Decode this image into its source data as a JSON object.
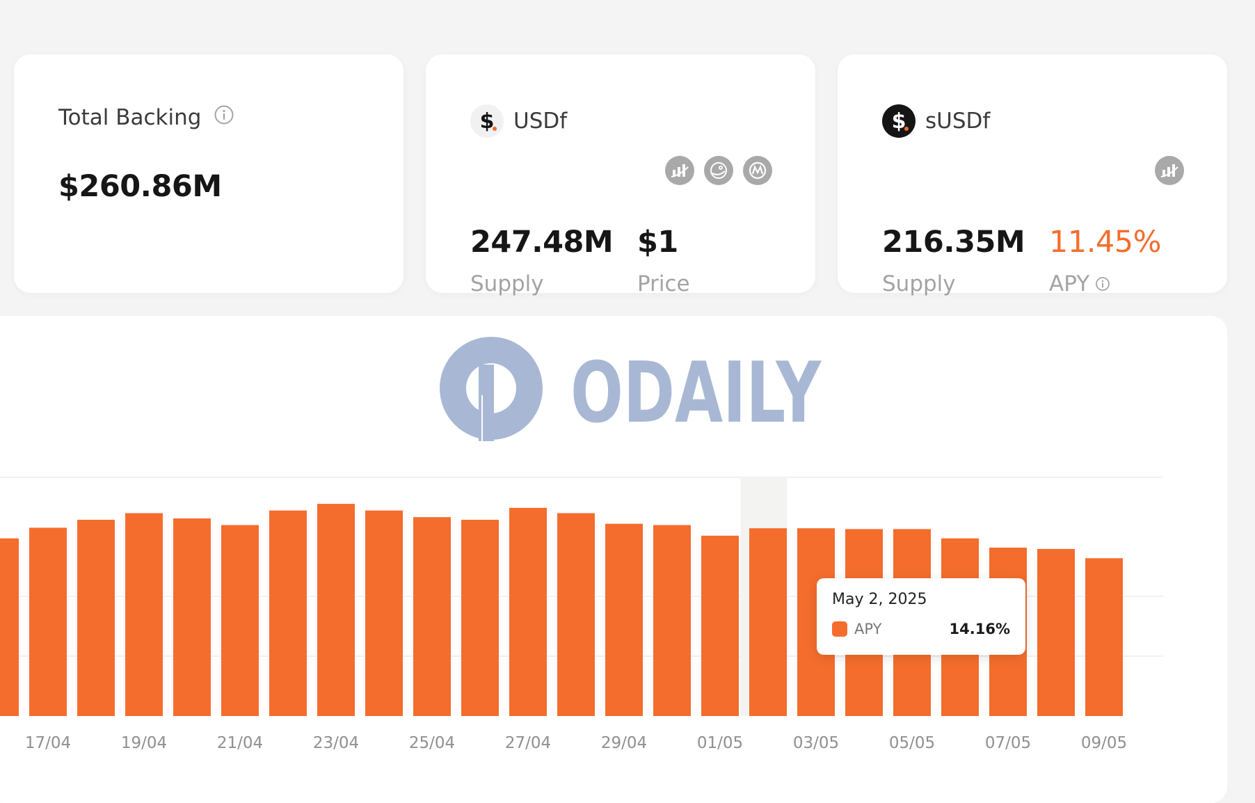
{
  "cards": {
    "backing": {
      "title": "Total Backing",
      "value": "$260.86M"
    },
    "usdf": {
      "name": "USDf",
      "logo_symbol": "$",
      "supply_value": "247.48M",
      "supply_label": "Supply",
      "price_value": "$1",
      "price_label": "Price",
      "link_icons": [
        "defillama-icon",
        "coingecko-icon",
        "coinmarketcap-icon"
      ]
    },
    "susdf": {
      "name": "sUSDf",
      "logo_symbol": "$",
      "supply_value": "216.35M",
      "supply_label": "Supply",
      "apy_value": "11.45%",
      "apy_label": "APY",
      "link_icons": [
        "defillama-icon"
      ]
    }
  },
  "watermark": {
    "text": "ODAILY"
  },
  "tooltip": {
    "date": "May 2, 2025",
    "label": "APY",
    "value": "14.16%"
  },
  "colors": {
    "accent": "#f46d2d",
    "hover_band": "#f3f3f1"
  },
  "chart_data": {
    "type": "bar",
    "categories": [
      "16/04",
      "17/04",
      "18/04",
      "19/04",
      "20/04",
      "21/04",
      "22/04",
      "23/04",
      "24/04",
      "25/04",
      "26/04",
      "27/04",
      "28/04",
      "29/04",
      "30/04",
      "01/05",
      "02/05",
      "03/05",
      "04/05",
      "05/05",
      "06/05",
      "07/05",
      "08/05",
      "09/05"
    ],
    "x_tick_labels": [
      "17/04",
      "19/04",
      "21/04",
      "23/04",
      "25/04",
      "27/04",
      "29/04",
      "01/05",
      "03/05",
      "05/05",
      "07/05",
      "09/05"
    ],
    "series": [
      {
        "name": "APY",
        "values": [
          13.4,
          14.2,
          14.8,
          15.3,
          14.9,
          14.4,
          15.5,
          16.0,
          15.5,
          15.0,
          14.8,
          15.7,
          15.3,
          14.5,
          14.4,
          13.6,
          14.16,
          14.16,
          14.1,
          14.1,
          13.4,
          12.7,
          12.6,
          11.9
        ]
      }
    ],
    "ylim": [
      0,
      18
    ],
    "highlight_category": "02/05",
    "grid": true,
    "legend": "none"
  }
}
